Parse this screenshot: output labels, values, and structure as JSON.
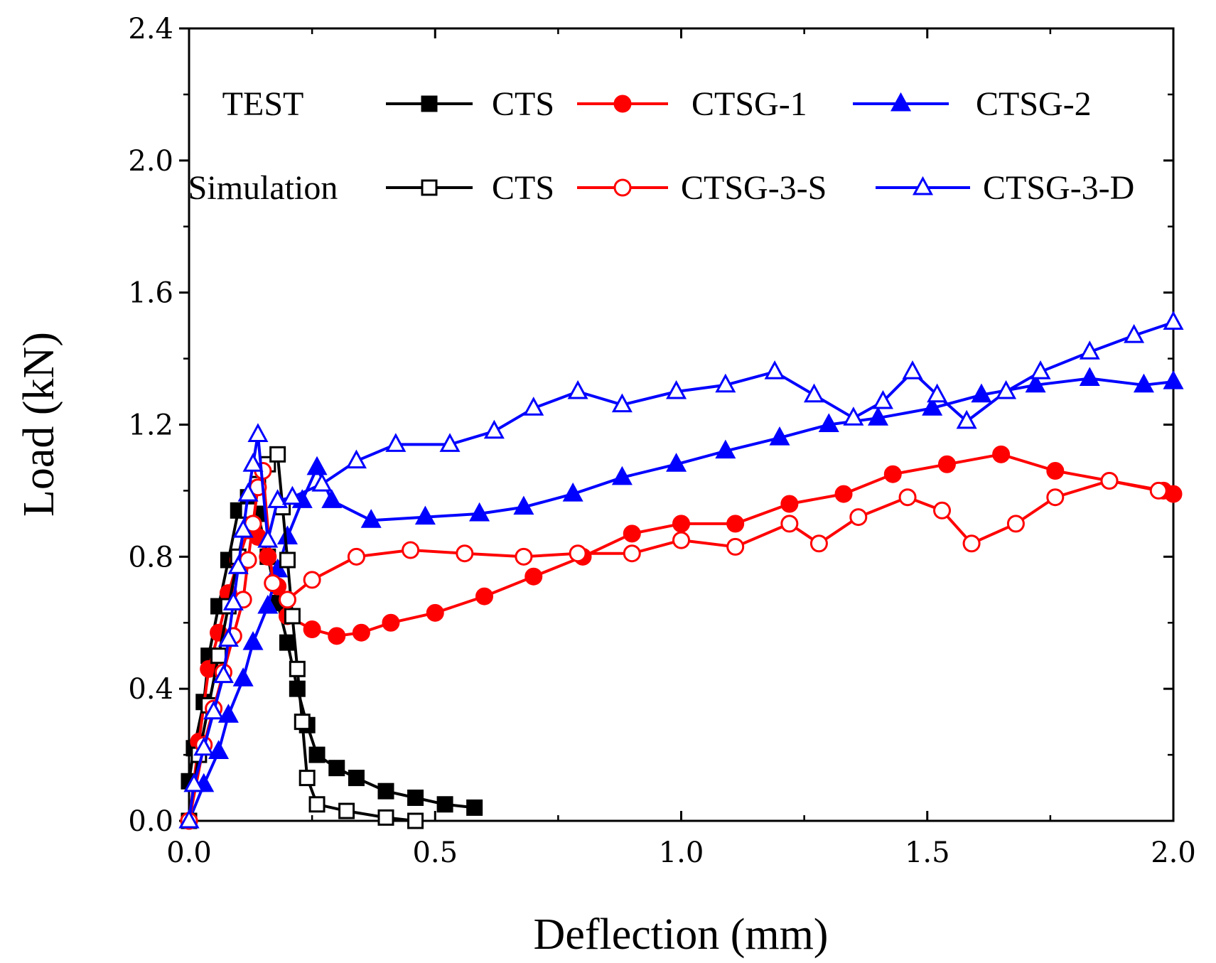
{
  "chart_data": {
    "type": "line",
    "title": "",
    "xlabel": "Deflection (mm)",
    "ylabel": "Load (kN)",
    "xlim": [
      0.0,
      2.0
    ],
    "ylim": [
      0.0,
      2.4
    ],
    "xticks": [
      {
        "value": 0.0,
        "label": "0.0"
      },
      {
        "value": 0.5,
        "label": "0.5"
      },
      {
        "value": 1.0,
        "label": "1.0"
      },
      {
        "value": 1.5,
        "label": "1.5"
      },
      {
        "value": 2.0,
        "label": "2.0"
      }
    ],
    "yticks": [
      {
        "value": 0.0,
        "label": "0.0"
      },
      {
        "value": 0.4,
        "label": "0.4"
      },
      {
        "value": 0.8,
        "label": "0.8"
      },
      {
        "value": 1.2,
        "label": "1.2"
      },
      {
        "value": 1.6,
        "label": "1.6"
      },
      {
        "value": 2.0,
        "label": "2.0"
      },
      {
        "value": 2.4,
        "label": "2.4"
      }
    ],
    "grid": false,
    "legend_groups": [
      {
        "group": "TEST",
        "entries": [
          "CTS",
          "CTSG-1",
          "CTSG-2"
        ]
      },
      {
        "group": "Simulation",
        "entries": [
          "CTS",
          "CTSG-3-S",
          "CTSG-3-D"
        ]
      }
    ],
    "series": [
      {
        "name": "CTS",
        "group": "TEST",
        "color": "#000000",
        "marker": "square",
        "filled": true,
        "x": [
          0.0,
          0.01,
          0.03,
          0.04,
          0.06,
          0.08,
          0.1,
          0.12,
          0.14,
          0.16,
          0.18,
          0.2,
          0.22,
          0.24,
          0.26,
          0.3,
          0.34,
          0.4,
          0.46,
          0.52,
          0.58
        ],
        "y": [
          0.12,
          0.22,
          0.36,
          0.5,
          0.65,
          0.79,
          0.94,
          0.98,
          0.93,
          0.8,
          0.66,
          0.54,
          0.4,
          0.29,
          0.2,
          0.16,
          0.13,
          0.09,
          0.07,
          0.05,
          0.04
        ]
      },
      {
        "name": "CTSG-1",
        "group": "TEST",
        "color": "#ff0000",
        "marker": "circle",
        "filled": true,
        "x": [
          0.0,
          0.02,
          0.04,
          0.06,
          0.08,
          0.1,
          0.12,
          0.14,
          0.16,
          0.18,
          0.2,
          0.25,
          0.3,
          0.35,
          0.41,
          0.5,
          0.6,
          0.7,
          0.8,
          0.9,
          1.0,
          1.11,
          1.22,
          1.33,
          1.43,
          1.54,
          1.65,
          1.76,
          1.87,
          1.98,
          2.0
        ],
        "y": [
          0.0,
          0.24,
          0.46,
          0.57,
          0.69,
          0.79,
          0.88,
          0.86,
          0.8,
          0.71,
          0.62,
          0.58,
          0.56,
          0.57,
          0.6,
          0.63,
          0.68,
          0.74,
          0.8,
          0.87,
          0.9,
          0.9,
          0.96,
          0.99,
          1.05,
          1.08,
          1.11,
          1.06,
          1.03,
          1.0,
          0.99
        ]
      },
      {
        "name": "CTSG-2",
        "group": "TEST",
        "color": "#0000ff",
        "marker": "triangle",
        "filled": true,
        "x": [
          0.0,
          0.03,
          0.06,
          0.08,
          0.11,
          0.13,
          0.16,
          0.18,
          0.2,
          0.23,
          0.26,
          0.29,
          0.37,
          0.48,
          0.59,
          0.68,
          0.78,
          0.88,
          0.99,
          1.09,
          1.2,
          1.3,
          1.4,
          1.51,
          1.61,
          1.72,
          1.83,
          1.94,
          2.0
        ],
        "y": [
          0.0,
          0.11,
          0.21,
          0.32,
          0.43,
          0.54,
          0.65,
          0.76,
          0.86,
          0.97,
          1.07,
          0.97,
          0.91,
          0.92,
          0.93,
          0.95,
          0.99,
          1.04,
          1.08,
          1.12,
          1.16,
          1.2,
          1.22,
          1.25,
          1.29,
          1.32,
          1.34,
          1.32,
          1.33
        ]
      },
      {
        "name": "CTS",
        "group": "Simulation",
        "color": "#000000",
        "marker": "square",
        "filled": false,
        "x": [
          0.0,
          0.02,
          0.04,
          0.06,
          0.08,
          0.1,
          0.12,
          0.14,
          0.16,
          0.18,
          0.19,
          0.2,
          0.21,
          0.22,
          0.23,
          0.24,
          0.26,
          0.32,
          0.4,
          0.46
        ],
        "y": [
          0.0,
          0.2,
          0.35,
          0.5,
          0.65,
          0.8,
          0.94,
          1.02,
          1.08,
          1.11,
          0.95,
          0.79,
          0.62,
          0.46,
          0.3,
          0.13,
          0.05,
          0.03,
          0.01,
          0.0
        ]
      },
      {
        "name": "CTSG-3-S",
        "group": "Simulation",
        "color": "#ff0000",
        "marker": "circle",
        "filled": false,
        "x": [
          0.0,
          0.03,
          0.05,
          0.07,
          0.09,
          0.11,
          0.12,
          0.13,
          0.14,
          0.15,
          0.17,
          0.2,
          0.25,
          0.34,
          0.45,
          0.56,
          0.68,
          0.79,
          0.9,
          1.0,
          1.11,
          1.22,
          1.28,
          1.36,
          1.46,
          1.53,
          1.59,
          1.68,
          1.76,
          1.87,
          1.97
        ],
        "y": [
          0.0,
          0.23,
          0.34,
          0.45,
          0.56,
          0.67,
          0.79,
          0.9,
          1.01,
          1.06,
          0.72,
          0.67,
          0.73,
          0.8,
          0.82,
          0.81,
          0.8,
          0.81,
          0.81,
          0.85,
          0.83,
          0.9,
          0.84,
          0.92,
          0.98,
          0.94,
          0.84,
          0.9,
          0.98,
          1.03,
          1.0
        ]
      },
      {
        "name": "CTSG-3-D",
        "group": "Simulation",
        "color": "#0000ff",
        "marker": "triangle",
        "filled": false,
        "x": [
          0.0,
          0.01,
          0.03,
          0.05,
          0.07,
          0.08,
          0.09,
          0.1,
          0.11,
          0.12,
          0.13,
          0.14,
          0.16,
          0.18,
          0.21,
          0.27,
          0.34,
          0.42,
          0.53,
          0.62,
          0.7,
          0.79,
          0.88,
          0.99,
          1.09,
          1.19,
          1.27,
          1.35,
          1.41,
          1.47,
          1.52,
          1.58,
          1.66,
          1.73,
          1.83,
          1.92,
          2.0
        ],
        "y": [
          0.0,
          0.11,
          0.22,
          0.33,
          0.44,
          0.55,
          0.66,
          0.77,
          0.88,
          0.99,
          1.08,
          1.17,
          0.85,
          0.97,
          0.98,
          1.02,
          1.09,
          1.14,
          1.14,
          1.18,
          1.25,
          1.3,
          1.26,
          1.3,
          1.32,
          1.36,
          1.29,
          1.22,
          1.27,
          1.36,
          1.29,
          1.21,
          1.3,
          1.36,
          1.42,
          1.47,
          1.51
        ]
      }
    ]
  }
}
